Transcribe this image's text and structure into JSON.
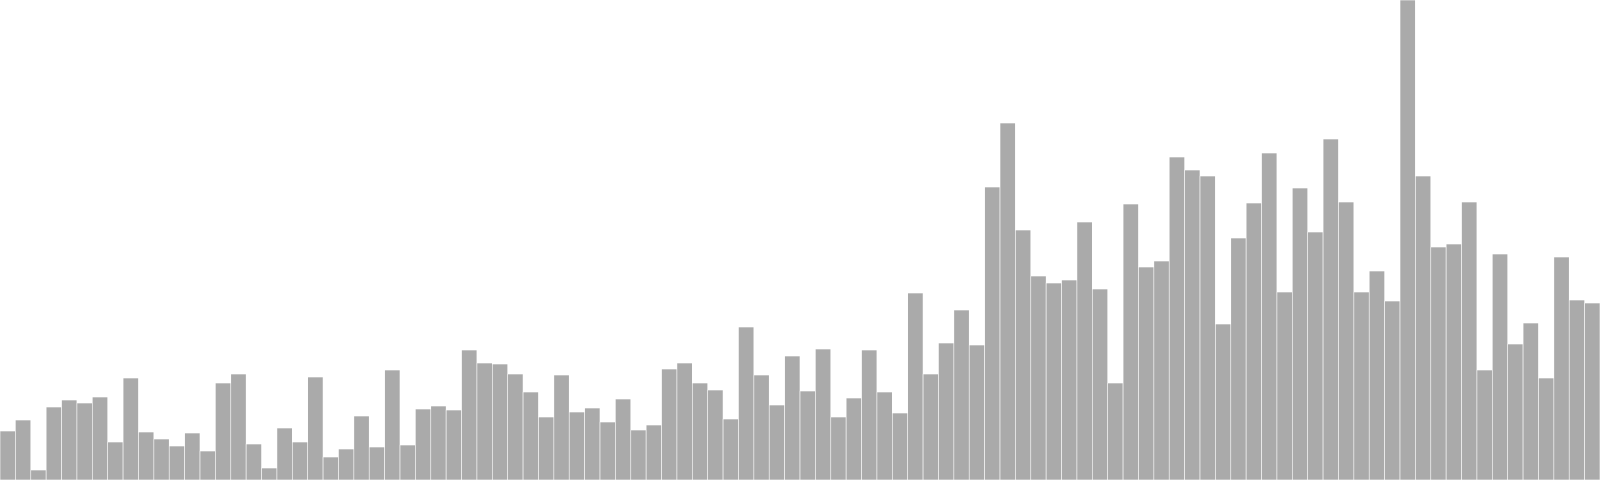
{
  "chart_data": {
    "type": "bar",
    "title": "",
    "xlabel": "",
    "ylabel": "",
    "bar_color": "#aaaaaa",
    "ylim": [
      0,
      480
    ],
    "axes_visible": false,
    "grid": false,
    "values": [
      49,
      60,
      10,
      73,
      80,
      77,
      83,
      38,
      102,
      48,
      41,
      34,
      47,
      29,
      97,
      106,
      36,
      12,
      52,
      38,
      103,
      23,
      31,
      64,
      33,
      110,
      35,
      71,
      74,
      70,
      130,
      117,
      116,
      106,
      88,
      63,
      105,
      68,
      72,
      58,
      81,
      50,
      55,
      111,
      117,
      97,
      90,
      61,
      153,
      105,
      75,
      124,
      89,
      131,
      63,
      82,
      130,
      88,
      67,
      187,
      106,
      137,
      170,
      135,
      293,
      357,
      250,
      204,
      197,
      200,
      258,
      191,
      97,
      276,
      213,
      219,
      323,
      310,
      304,
      156,
      242,
      277,
      327,
      188,
      292,
      248,
      341,
      278,
      188,
      209,
      179,
      480,
      304,
      233,
      236,
      278,
      110,
      226,
      136,
      157,
      102,
      223,
      180,
      177
    ]
  }
}
